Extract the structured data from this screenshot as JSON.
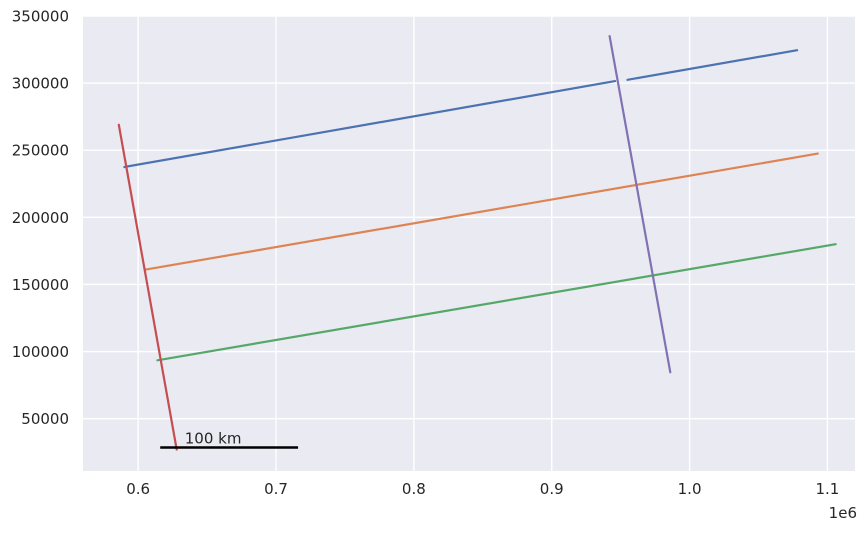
{
  "chart_data": {
    "type": "line",
    "title": "",
    "xlabel": "",
    "ylabel": "",
    "x_offset_label": "1e6",
    "xlim": [
      560000,
      1120000
    ],
    "ylim": [
      11000,
      350000
    ],
    "grid": true,
    "legend": "none",
    "background_color": "#eaeaf2",
    "grid_color": "#ffffff",
    "x_ticks": [
      {
        "value": 600000,
        "label": "0.6"
      },
      {
        "value": 700000,
        "label": "0.7"
      },
      {
        "value": 800000,
        "label": "0.8"
      },
      {
        "value": 900000,
        "label": "0.9"
      },
      {
        "value": 1000000,
        "label": "1.0"
      },
      {
        "value": 1100000,
        "label": "1.1"
      }
    ],
    "y_ticks": [
      {
        "value": 50000,
        "label": "50000"
      },
      {
        "value": 100000,
        "label": "100000"
      },
      {
        "value": 150000,
        "label": "150000"
      },
      {
        "value": 200000,
        "label": "200000"
      },
      {
        "value": 250000,
        "label": "250000"
      },
      {
        "value": 300000,
        "label": "300000"
      },
      {
        "value": 350000,
        "label": "350000"
      }
    ],
    "series": [
      {
        "color": "#4c72b0",
        "segments": [
          [
            [
              590000,
              237500
            ],
            [
              946000,
              301500
            ]
          ],
          [
            [
              955000,
              302500
            ],
            [
              1078000,
              324500
            ]
          ]
        ]
      },
      {
        "color": "#dd8452",
        "segments": [
          [
            [
              605000,
              161000
            ],
            [
              1093000,
              247500
            ]
          ]
        ]
      },
      {
        "color": "#55a868",
        "segments": [
          [
            [
              614000,
              93500
            ],
            [
              1106000,
              180000
            ]
          ]
        ]
      },
      {
        "color": "#c44e52",
        "segments": [
          [
            [
              586000,
              269000
            ],
            [
              628000,
              27000
            ]
          ]
        ]
      },
      {
        "color": "#8172b3",
        "segments": [
          [
            [
              942000,
              335000
            ],
            [
              986000,
              84500
            ]
          ]
        ]
      }
    ],
    "scale_bar": {
      "label": "100 km",
      "x_start": 616000,
      "x_end": 716000,
      "y": 28500,
      "color": "#000000"
    }
  }
}
